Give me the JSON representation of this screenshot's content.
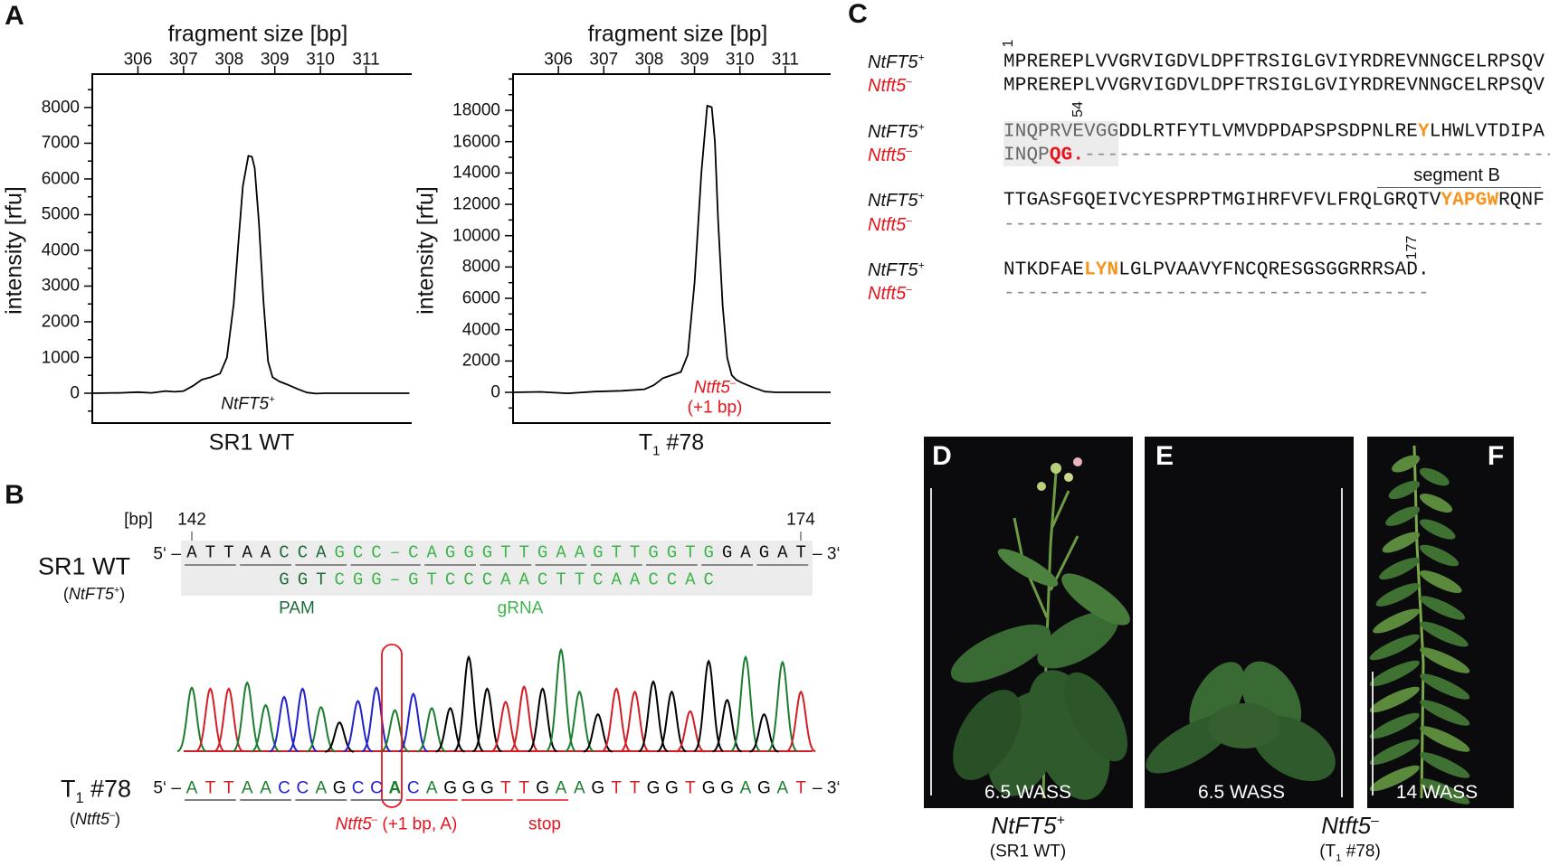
{
  "panel_labels": {
    "A": "A",
    "B": "B",
    "C": "C",
    "D": "D",
    "E": "E",
    "F": "F"
  },
  "chart_data": [
    {
      "type": "line",
      "top_xlabel": "fragment size [bp]",
      "ylabel": "intensity [rfu]",
      "xlabel": "SR1 WT",
      "xticks": [
        306,
        307,
        308,
        309,
        310,
        311
      ],
      "yticks": [
        0,
        1000,
        2000,
        3000,
        4000,
        5000,
        6000,
        7000,
        8000
      ],
      "yminor_step": 500,
      "xlim": [
        305,
        312
      ],
      "ylim": [
        -835,
        8935
      ],
      "x": [
        305.0,
        305.6,
        306.0,
        306.3,
        306.6,
        306.8,
        307.0,
        307.2,
        307.4,
        307.6,
        307.8,
        307.95,
        308.1,
        308.2,
        308.3,
        308.42,
        308.5,
        308.56,
        308.65,
        308.75,
        308.85,
        308.95,
        309.1,
        309.3,
        309.5,
        309.7,
        309.9,
        310.1,
        310.5,
        311.0,
        311.95
      ],
      "y": [
        0,
        10,
        30,
        10,
        60,
        40,
        60,
        200,
        380,
        450,
        550,
        1000,
        2500,
        4200,
        5800,
        6650,
        6620,
        6300,
        4800,
        2600,
        900,
        450,
        330,
        230,
        120,
        20,
        -10,
        0,
        0,
        0,
        0
      ],
      "line_color": "#000000",
      "annotation": {
        "text": "NtFT5",
        "sup": "+",
        "color": "#000000"
      }
    },
    {
      "type": "line",
      "top_xlabel": "fragment size [bp]",
      "ylabel": "intensity [rfu]",
      "xlabel": {
        "main": "T",
        "sub": "1",
        "rest": " #78"
      },
      "xticks": [
        306,
        307,
        308,
        309,
        310,
        311
      ],
      "yticks": [
        0,
        2000,
        4000,
        6000,
        8000,
        10000,
        12000,
        14000,
        16000,
        18000
      ],
      "yminor_step": 1000,
      "xlim": [
        305,
        312
      ],
      "ylim": [
        -1960,
        20310
      ],
      "x": [
        305.0,
        305.6,
        306.2,
        306.8,
        307.4,
        307.9,
        308.1,
        308.3,
        308.5,
        308.7,
        308.85,
        309.0,
        309.15,
        309.28,
        309.38,
        309.45,
        309.52,
        309.62,
        309.72,
        309.82,
        309.92,
        310.05,
        310.3,
        310.55,
        310.8,
        311.2,
        312.0
      ],
      "y": [
        0,
        30,
        -60,
        50,
        100,
        200,
        450,
        900,
        1100,
        1300,
        2400,
        7000,
        14000,
        18300,
        18200,
        16000,
        11000,
        5500,
        2200,
        1100,
        800,
        600,
        300,
        50,
        0,
        0,
        0
      ],
      "line_color": "#000000",
      "annotation": {
        "text": "Ntft5",
        "sup": "–",
        "line2": "(+1 bp)",
        "color": "#e8141b"
      }
    },
    {
      "type": "line",
      "subtype": "sequencing-chromatogram",
      "bases": "ATTAACCAGCCACAGGGTTGAAGTTGGTGGAGAT",
      "relative_peak_heights": [
        63,
        62,
        62,
        68,
        46,
        54,
        62,
        44,
        29,
        50,
        63,
        41,
        57,
        43,
        43,
        93,
        62,
        49,
        64,
        62,
        100,
        59,
        37,
        62,
        59,
        69,
        59,
        40,
        89,
        51,
        93,
        37,
        88,
        59
      ],
      "base_colors": {
        "A": "#1b7d2f",
        "T": "#d21f26",
        "C": "#2222cc",
        "G": "#000000"
      },
      "highlight_index": 11,
      "highlight_color": "#e8141b"
    }
  ],
  "panel_b": {
    "bp_unit": "[bp]",
    "start_pos": "142",
    "end_pos": "174",
    "five_prime": "5‘ –",
    "three_prime": "– 3‘",
    "wt": {
      "name": "SR1 WT",
      "genotype": "NtFT5",
      "genotype_sup": "+",
      "top_segments": [
        {
          "text": "ATTAA",
          "color": "#111111"
        },
        {
          "text": "CCA",
          "color": "#1f6b3b"
        },
        {
          "text": "GCC–CAGGGTTGAAGTTGGTG",
          "color": "#3db54a"
        },
        {
          "text": "GAGAT",
          "color": "#111111"
        }
      ],
      "bottom_offset": 5,
      "bottom_segments": [
        {
          "text": "GGT",
          "color": "#1f6b3b"
        },
        {
          "text": "CGG–GTCCCAACTTCAACCAC",
          "color": "#3db54a"
        }
      ],
      "pam_label": "PAM",
      "pam_color": "#1f6b3b",
      "grna_label": "gRNA",
      "grna_color": "#3db54a"
    },
    "mutant": {
      "name_main": "T",
      "name_sub": "1",
      "name_rest": " #78",
      "genotype": "Ntft5",
      "genotype_sup": "–",
      "sequence": "ATTAACCAGCCACAGGGTTGAAGTTGGTGGAGAT",
      "inserted_index": 11,
      "insertion_label": {
        "gene": "Ntft5",
        "sup": "–",
        "rest": " (+1 bp, A)"
      },
      "stop_label": "stop"
    }
  },
  "panel_c": {
    "wt_label": {
      "text": "NtFT5",
      "sup": "+"
    },
    "mut_label": {
      "text": "Ntft5",
      "sup": "–"
    },
    "position_markers": [
      {
        "label": "1",
        "row": 0,
        "index": 0
      },
      {
        "label": "54",
        "row": 1,
        "index": 6
      },
      {
        "label": "177",
        "row": 3,
        "index": 35
      }
    ],
    "segment_label": "segment B",
    "rows": [
      {
        "wt": [
          {
            "text": "MPREREPLVVGRVIGDVLDPFTRSIGLGVIYRDREVNNGCELRPSQV",
            "style": "normal"
          }
        ],
        "mut": [
          {
            "text": "MPREREPLVVGRVIGDVLDPFTRSIGLGVIYRDREVNNGCELRPSQV",
            "style": "normal"
          }
        ]
      },
      {
        "wt": [
          {
            "text": "INQPRVEVGG",
            "style": "shaded"
          },
          {
            "text": "DDLRTFYTLVMVDPDAPSPSDPNLRE",
            "style": "normal"
          },
          {
            "text": "Y",
            "style": "highlight"
          },
          {
            "text": "LHWLVTDIPA",
            "style": "normal"
          }
        ],
        "mut": [
          {
            "text": "INQP",
            "style": "shaded"
          },
          {
            "text": "QG.",
            "style": "mutation"
          },
          {
            "text": "-----------------------------------------",
            "style": "gap"
          }
        ]
      },
      {
        "wt": [
          {
            "text": "TTGASFGQEIVCYESPRPTMGIHRFVFVLFRQLGRQTV",
            "style": "normal"
          },
          {
            "text": "YAPGW",
            "style": "highlight"
          },
          {
            "text": "RQNF",
            "style": "normal"
          }
        ],
        "mut": [
          {
            "text": "-----------------------------------------------",
            "style": "gap"
          }
        ]
      },
      {
        "wt": [
          {
            "text": "NTKDFAE",
            "style": "normal"
          },
          {
            "text": "LYN",
            "style": "highlight"
          },
          {
            "text": "LGLPVAAVYFNCQRESGSGGRRRSAD.",
            "style": "normal"
          }
        ],
        "mut": [
          {
            "text": "-------------------------------------",
            "style": "gap"
          }
        ]
      }
    ],
    "highlight_color": "#f7941d",
    "mutation_color": "#e8141b"
  },
  "panel_photos": {
    "D": {
      "age": "6.5 WASS"
    },
    "E": {
      "age": "6.5 WASS"
    },
    "F": {
      "age": "14 WASS"
    },
    "wt_caption": {
      "gene": "NtFT5",
      "sup": "+",
      "line2": "(SR1 WT)"
    },
    "mut_caption": {
      "gene": "Ntft5",
      "sup": "–",
      "line2_main": "(T",
      "line2_sub": "1",
      "line2_rest": " #78)"
    }
  }
}
